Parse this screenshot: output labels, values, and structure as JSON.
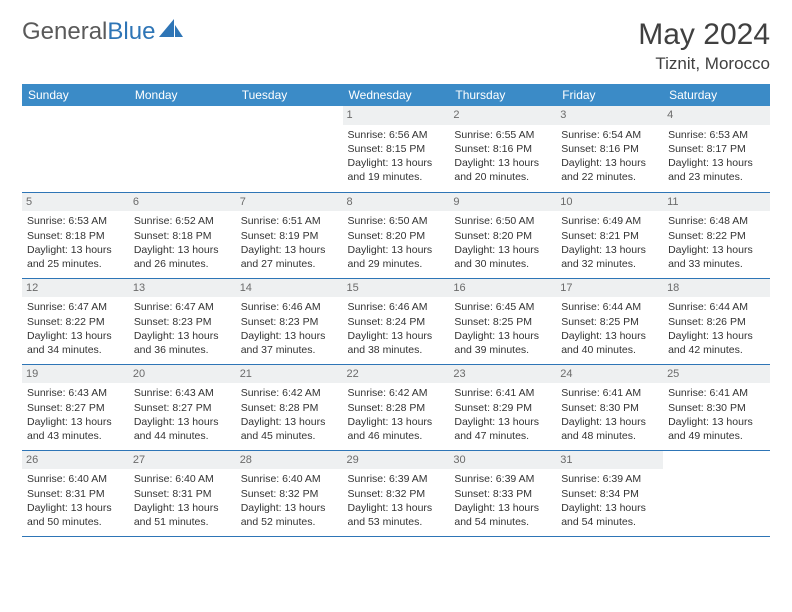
{
  "logo": {
    "part1": "General",
    "part2": "Blue"
  },
  "title": "May 2024",
  "location": "Tiznit, Morocco",
  "colors": {
    "header_bg": "#3b8bc7",
    "header_text": "#ffffff",
    "daynum_bg": "#eef0f1",
    "daynum_text": "#6b6b6b",
    "border": "#2e75b6",
    "body_text": "#333333",
    "page_bg": "#ffffff",
    "logo_gray": "#5a5a5a",
    "logo_blue": "#2e75b6"
  },
  "typography": {
    "title_fontsize": 30,
    "location_fontsize": 17,
    "dayheader_fontsize": 12,
    "cell_fontsize": 10.5
  },
  "day_headers": [
    "Sunday",
    "Monday",
    "Tuesday",
    "Wednesday",
    "Thursday",
    "Friday",
    "Saturday"
  ],
  "labels": {
    "sunrise": "Sunrise: ",
    "sunset": "Sunset: ",
    "daylight": "Daylight: "
  },
  "weeks": [
    [
      {
        "n": "",
        "empty": true
      },
      {
        "n": "",
        "empty": true
      },
      {
        "n": "",
        "empty": true
      },
      {
        "n": "1",
        "sunrise": "6:56 AM",
        "sunset": "8:15 PM",
        "daylight": "13 hours and 19 minutes."
      },
      {
        "n": "2",
        "sunrise": "6:55 AM",
        "sunset": "8:16 PM",
        "daylight": "13 hours and 20 minutes."
      },
      {
        "n": "3",
        "sunrise": "6:54 AM",
        "sunset": "8:16 PM",
        "daylight": "13 hours and 22 minutes."
      },
      {
        "n": "4",
        "sunrise": "6:53 AM",
        "sunset": "8:17 PM",
        "daylight": "13 hours and 23 minutes."
      }
    ],
    [
      {
        "n": "5",
        "sunrise": "6:53 AM",
        "sunset": "8:18 PM",
        "daylight": "13 hours and 25 minutes."
      },
      {
        "n": "6",
        "sunrise": "6:52 AM",
        "sunset": "8:18 PM",
        "daylight": "13 hours and 26 minutes."
      },
      {
        "n": "7",
        "sunrise": "6:51 AM",
        "sunset": "8:19 PM",
        "daylight": "13 hours and 27 minutes."
      },
      {
        "n": "8",
        "sunrise": "6:50 AM",
        "sunset": "8:20 PM",
        "daylight": "13 hours and 29 minutes."
      },
      {
        "n": "9",
        "sunrise": "6:50 AM",
        "sunset": "8:20 PM",
        "daylight": "13 hours and 30 minutes."
      },
      {
        "n": "10",
        "sunrise": "6:49 AM",
        "sunset": "8:21 PM",
        "daylight": "13 hours and 32 minutes."
      },
      {
        "n": "11",
        "sunrise": "6:48 AM",
        "sunset": "8:22 PM",
        "daylight": "13 hours and 33 minutes."
      }
    ],
    [
      {
        "n": "12",
        "sunrise": "6:47 AM",
        "sunset": "8:22 PM",
        "daylight": "13 hours and 34 minutes."
      },
      {
        "n": "13",
        "sunrise": "6:47 AM",
        "sunset": "8:23 PM",
        "daylight": "13 hours and 36 minutes."
      },
      {
        "n": "14",
        "sunrise": "6:46 AM",
        "sunset": "8:23 PM",
        "daylight": "13 hours and 37 minutes."
      },
      {
        "n": "15",
        "sunrise": "6:46 AM",
        "sunset": "8:24 PM",
        "daylight": "13 hours and 38 minutes."
      },
      {
        "n": "16",
        "sunrise": "6:45 AM",
        "sunset": "8:25 PM",
        "daylight": "13 hours and 39 minutes."
      },
      {
        "n": "17",
        "sunrise": "6:44 AM",
        "sunset": "8:25 PM",
        "daylight": "13 hours and 40 minutes."
      },
      {
        "n": "18",
        "sunrise": "6:44 AM",
        "sunset": "8:26 PM",
        "daylight": "13 hours and 42 minutes."
      }
    ],
    [
      {
        "n": "19",
        "sunrise": "6:43 AM",
        "sunset": "8:27 PM",
        "daylight": "13 hours and 43 minutes."
      },
      {
        "n": "20",
        "sunrise": "6:43 AM",
        "sunset": "8:27 PM",
        "daylight": "13 hours and 44 minutes."
      },
      {
        "n": "21",
        "sunrise": "6:42 AM",
        "sunset": "8:28 PM",
        "daylight": "13 hours and 45 minutes."
      },
      {
        "n": "22",
        "sunrise": "6:42 AM",
        "sunset": "8:28 PM",
        "daylight": "13 hours and 46 minutes."
      },
      {
        "n": "23",
        "sunrise": "6:41 AM",
        "sunset": "8:29 PM",
        "daylight": "13 hours and 47 minutes."
      },
      {
        "n": "24",
        "sunrise": "6:41 AM",
        "sunset": "8:30 PM",
        "daylight": "13 hours and 48 minutes."
      },
      {
        "n": "25",
        "sunrise": "6:41 AM",
        "sunset": "8:30 PM",
        "daylight": "13 hours and 49 minutes."
      }
    ],
    [
      {
        "n": "26",
        "sunrise": "6:40 AM",
        "sunset": "8:31 PM",
        "daylight": "13 hours and 50 minutes."
      },
      {
        "n": "27",
        "sunrise": "6:40 AM",
        "sunset": "8:31 PM",
        "daylight": "13 hours and 51 minutes."
      },
      {
        "n": "28",
        "sunrise": "6:40 AM",
        "sunset": "8:32 PM",
        "daylight": "13 hours and 52 minutes."
      },
      {
        "n": "29",
        "sunrise": "6:39 AM",
        "sunset": "8:32 PM",
        "daylight": "13 hours and 53 minutes."
      },
      {
        "n": "30",
        "sunrise": "6:39 AM",
        "sunset": "8:33 PM",
        "daylight": "13 hours and 54 minutes."
      },
      {
        "n": "31",
        "sunrise": "6:39 AM",
        "sunset": "8:34 PM",
        "daylight": "13 hours and 54 minutes."
      },
      {
        "n": "",
        "empty": true
      }
    ]
  ]
}
